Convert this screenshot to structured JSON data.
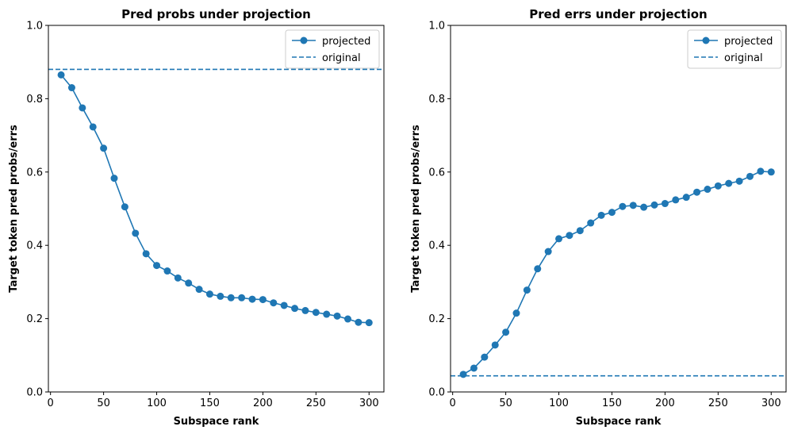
{
  "colors": {
    "series": "#1f77b4",
    "axes": "#000000",
    "legend_border": "#cccccc"
  },
  "chart_data": [
    {
      "type": "line",
      "title": "Pred probs under projection",
      "xlabel": "Subspace rank",
      "ylabel": "Target token pred probs/errs",
      "xlim": [
        -2,
        314
      ],
      "ylim": [
        0,
        1
      ],
      "xticks": [
        0,
        50,
        100,
        150,
        200,
        250,
        300
      ],
      "yticks": [
        0.0,
        0.2,
        0.4,
        0.6,
        0.8,
        1.0
      ],
      "xtick_labels": [
        "0",
        "50",
        "100",
        "150",
        "200",
        "250",
        "300"
      ],
      "ytick_labels": [
        "0.0",
        "0.2",
        "0.4",
        "0.6",
        "0.8",
        "1.0"
      ],
      "grid": false,
      "legend": {
        "position": "top-right",
        "entries": [
          "projected",
          "original"
        ]
      },
      "series": [
        {
          "name": "projected",
          "style": "line-with-markers",
          "x": [
            10,
            20,
            30,
            40,
            50,
            60,
            70,
            80,
            90,
            100,
            110,
            120,
            130,
            140,
            150,
            160,
            170,
            180,
            190,
            200,
            210,
            220,
            230,
            240,
            250,
            260,
            270,
            280,
            290,
            300
          ],
          "y": [
            0.865,
            0.83,
            0.775,
            0.723,
            0.665,
            0.583,
            0.505,
            0.433,
            0.377,
            0.345,
            0.33,
            0.311,
            0.297,
            0.28,
            0.267,
            0.261,
            0.257,
            0.257,
            0.253,
            0.252,
            0.243,
            0.236,
            0.228,
            0.222,
            0.217,
            0.212,
            0.207,
            0.199,
            0.19,
            0.189
          ]
        },
        {
          "name": "original",
          "style": "dashed-horizontal",
          "y": 0.88
        }
      ]
    },
    {
      "type": "line",
      "title": "Pred errs under projection",
      "xlabel": "Subspace rank",
      "ylabel": "Target token pred probs/errs",
      "xlim": [
        -2,
        314
      ],
      "ylim": [
        0,
        1
      ],
      "xticks": [
        0,
        50,
        100,
        150,
        200,
        250,
        300
      ],
      "yticks": [
        0.0,
        0.2,
        0.4,
        0.6,
        0.8,
        1.0
      ],
      "xtick_labels": [
        "0",
        "50",
        "100",
        "150",
        "200",
        "250",
        "300"
      ],
      "ytick_labels": [
        "0.0",
        "0.2",
        "0.4",
        "0.6",
        "0.8",
        "1.0"
      ],
      "grid": false,
      "legend": {
        "position": "top-right",
        "entries": [
          "projected",
          "original"
        ]
      },
      "series": [
        {
          "name": "projected",
          "style": "line-with-markers",
          "x": [
            10,
            20,
            30,
            40,
            50,
            60,
            70,
            80,
            90,
            100,
            110,
            120,
            130,
            140,
            150,
            160,
            170,
            180,
            190,
            200,
            210,
            220,
            230,
            240,
            250,
            260,
            270,
            280,
            290,
            300
          ],
          "y": [
            0.048,
            0.065,
            0.095,
            0.128,
            0.163,
            0.215,
            0.278,
            0.336,
            0.383,
            0.418,
            0.427,
            0.44,
            0.461,
            0.482,
            0.49,
            0.506,
            0.509,
            0.504,
            0.51,
            0.514,
            0.524,
            0.531,
            0.545,
            0.553,
            0.562,
            0.569,
            0.575,
            0.588,
            0.602,
            0.6
          ]
        },
        {
          "name": "original",
          "style": "dashed-horizontal",
          "y": 0.044
        }
      ]
    }
  ]
}
